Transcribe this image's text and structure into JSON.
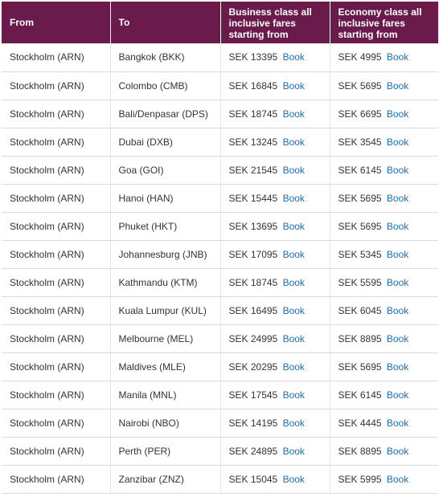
{
  "table": {
    "headers": {
      "from": "From",
      "to": "To",
      "business": "Business class all inclusive fares starting from",
      "economy": "Economy class all inclusive fares starting from"
    },
    "book_label": "Book",
    "rows": [
      {
        "from": "Stockholm (ARN)",
        "to": "Bangkok (BKK)",
        "business": "SEK 13395",
        "economy": "SEK 4995"
      },
      {
        "from": "Stockholm (ARN)",
        "to": "Colombo (CMB)",
        "business": "SEK 16845",
        "economy": "SEK 5695"
      },
      {
        "from": "Stockholm (ARN)",
        "to": "Bali/Denpasar (DPS)",
        "business": "SEK 18745",
        "economy": "SEK 6695"
      },
      {
        "from": "Stockholm (ARN)",
        "to": "Dubai (DXB)",
        "business": "SEK 13245",
        "economy": "SEK 3545"
      },
      {
        "from": "Stockholm (ARN)",
        "to": "Goa (GOI)",
        "business": "SEK 21545",
        "economy": "SEK 6145"
      },
      {
        "from": "Stockholm (ARN)",
        "to": "Hanoi (HAN)",
        "business": "SEK 15445",
        "economy": "SEK 5695"
      },
      {
        "from": "Stockholm (ARN)",
        "to": "Phuket (HKT)",
        "business": "SEK 13695",
        "economy": "SEK 5695"
      },
      {
        "from": "Stockholm (ARN)",
        "to": "Johannesburg (JNB)",
        "business": "SEK 17095",
        "economy": "SEK 5345"
      },
      {
        "from": "Stockholm (ARN)",
        "to": "Kathmandu (KTM)",
        "business": "SEK 18745",
        "economy": "SEK 5595"
      },
      {
        "from": "Stockholm (ARN)",
        "to": "Kuala Lumpur (KUL)",
        "business": "SEK 16495",
        "economy": "SEK 6045"
      },
      {
        "from": "Stockholm (ARN)",
        "to": "Melbourne (MEL)",
        "business": "SEK 24995",
        "economy": "SEK 8895"
      },
      {
        "from": "Stockholm (ARN)",
        "to": "Maldives (MLE)",
        "business": "SEK 20295",
        "economy": "SEK 5695"
      },
      {
        "from": "Stockholm (ARN)",
        "to": "Manila (MNL)",
        "business": "SEK 17545",
        "economy": "SEK 6145"
      },
      {
        "from": "Stockholm (ARN)",
        "to": "Nairobi (NBO)",
        "business": "SEK 14195",
        "economy": "SEK 4445"
      },
      {
        "from": "Stockholm (ARN)",
        "to": "Perth (PER)",
        "business": "SEK 24895",
        "economy": "SEK 8895"
      },
      {
        "from": "Stockholm (ARN)",
        "to": "Zanzibar (ZNZ)",
        "business": "SEK 15045",
        "economy": "SEK 5995"
      }
    ]
  },
  "colors": {
    "header_background": "#6b1b4b",
    "header_text": "#ffffff",
    "link": "#1a6fb5",
    "body_text": "#333333",
    "row_divider": "#d9d9d9"
  }
}
